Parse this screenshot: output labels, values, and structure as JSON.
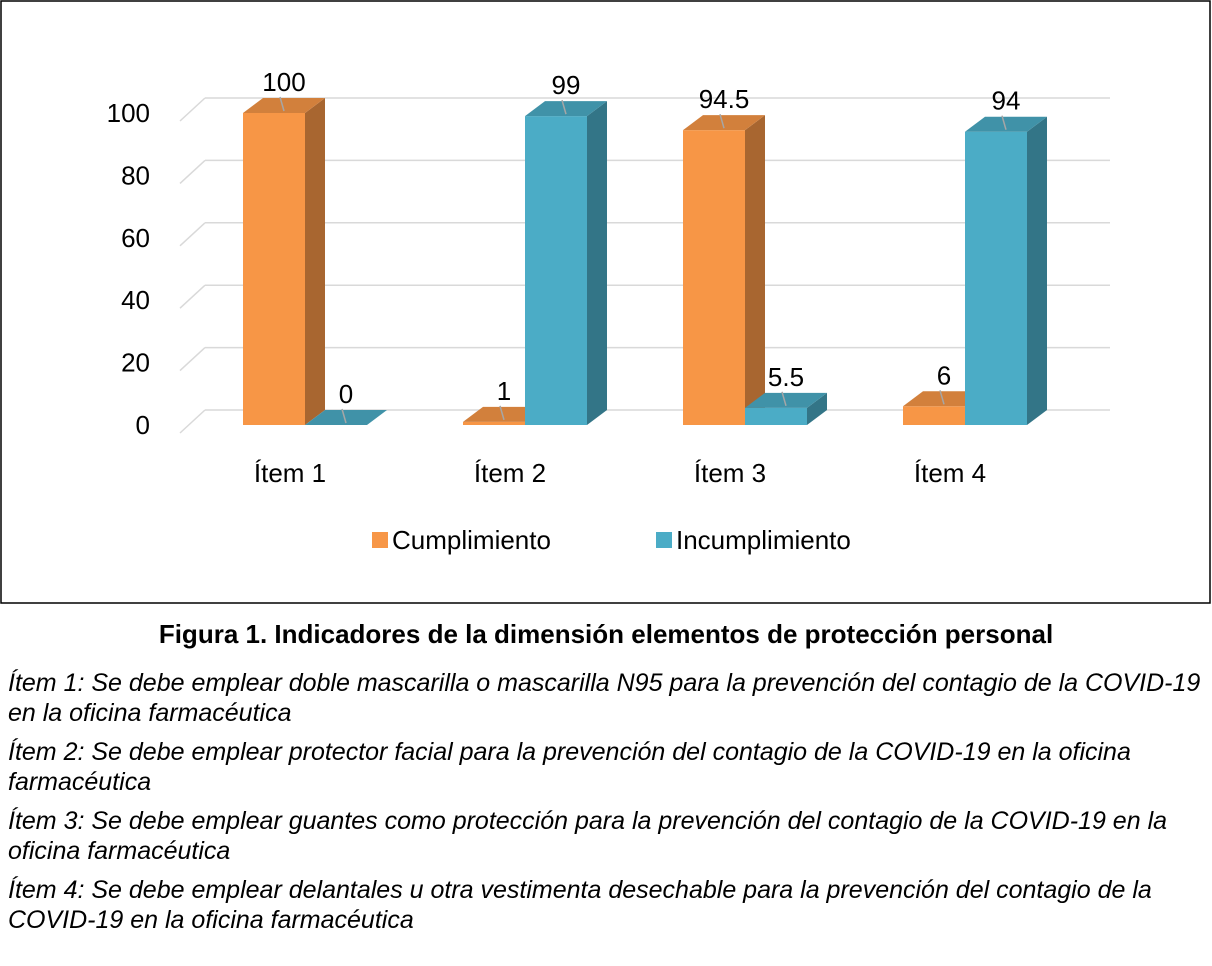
{
  "chart_data": {
    "type": "bar3d",
    "categories": [
      "Ítem 1",
      "Ítem 2",
      "Ítem 3",
      "Ítem 4"
    ],
    "series": [
      {
        "name": "Cumplimiento",
        "color": "#f79646",
        "values": [
          100,
          1,
          94.5,
          6
        ]
      },
      {
        "name": "Incumplimiento",
        "color": "#4bacc6",
        "values": [
          0,
          99,
          5.5,
          94
        ]
      }
    ],
    "ylim": [
      0,
      100
    ],
    "yticks": [
      0,
      20,
      40,
      60,
      80,
      100
    ],
    "grid": true,
    "legend": "bottom"
  },
  "caption": "Figura 1. Indicadores de la dimensión elementos de protección personal",
  "notes": [
    "Ítem 1: Se debe emplear doble mascarilla o mascarilla N95 para la prevención del contagio de la COVID-19 en la oficina farmacéutica",
    "Ítem 2: Se debe emplear protector facial para la prevención del contagio de la COVID-19 en la oficina farmacéutica",
    "Ítem 3: Se debe emplear guantes como protección para la prevención del contagio de la COVID-19 en la oficina farmacéutica",
    "Ítem 4: Se debe emplear delantales u otra vestimenta desechable para la prevención del contagio de la COVID-19 en la oficina farmacéutica"
  ]
}
